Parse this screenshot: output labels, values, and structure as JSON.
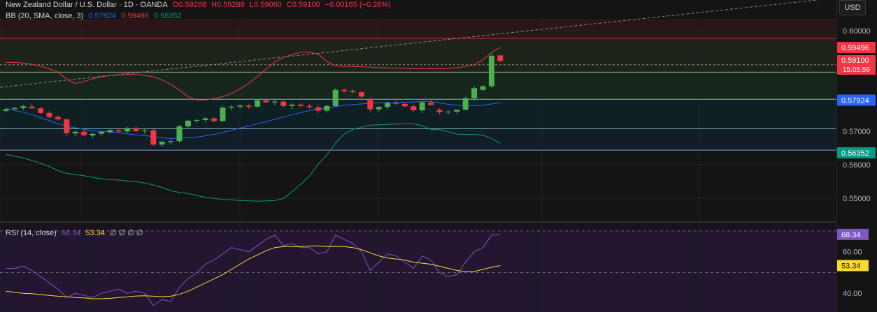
{
  "header": {
    "symbol": "New Zealand Dollar / U.S. Dollar · 1D · OANDA",
    "open": "O0.59268",
    "high": "H0.59268",
    "low": "L0.59060",
    "close": "C0.59100",
    "change": "−0.00165 (−0.28%)"
  },
  "bb_legend": {
    "label": "BB (20, SMA, close, 3)",
    "basis": "0.57924",
    "upper": "0.59496",
    "lower": "0.56352"
  },
  "rsi_legend": {
    "label": "RSI (14, close)",
    "rsi": "68.34",
    "ma": "53.34",
    "extra": "∅ ∅ ∅ ∅"
  },
  "currency_button": "USD",
  "colors": {
    "up": "#4caf50",
    "down": "#f23645",
    "bb_basis": "#2962ff",
    "bb_upper": "#f23645",
    "bb_lower": "#089981",
    "rsi": "#7e57c2",
    "rsi_ma": "#fdd835"
  },
  "chart_data": [
    {
      "type": "candlestick",
      "title": "New Zealand Dollar / U.S. Dollar · 1D · OANDA",
      "price_axis": {
        "ticks": [
          "0.60000",
          "0.57000",
          "0.56000",
          "0.55000"
        ],
        "tick_values": [
          0.6,
          0.57,
          0.56,
          0.55
        ],
        "labels": [
          {
            "text": "0.59496",
            "value": 0.59496,
            "color": "#f23645"
          },
          {
            "text": "0.59100",
            "value": 0.591,
            "color": "#f23645"
          },
          {
            "text": "15:05:59",
            "value": 0.5895,
            "color": "#f23645"
          },
          {
            "text": "0.57924",
            "value": 0.57924,
            "color": "#2962ff"
          },
          {
            "text": "0.56352",
            "value": 0.56352,
            "color": "#089981"
          }
        ],
        "range": [
          0.5433,
          0.6035
        ]
      },
      "horizontal_levels": [
        0.5977,
        0.5898,
        0.5876,
        0.5795,
        0.5707,
        0.5643
      ],
      "candles": [
        [
          0.576,
          0.5768,
          0.5756,
          0.5765
        ],
        [
          0.5766,
          0.5772,
          0.576,
          0.5769
        ],
        [
          0.5769,
          0.5778,
          0.5762,
          0.5774
        ],
        [
          0.5773,
          0.5783,
          0.5766,
          0.5768
        ],
        [
          0.5768,
          0.5772,
          0.575,
          0.5754
        ],
        [
          0.5754,
          0.576,
          0.5738,
          0.5742
        ],
        [
          0.5742,
          0.5748,
          0.5732,
          0.5735
        ],
        [
          0.5735,
          0.5738,
          0.5685,
          0.5694
        ],
        [
          0.5693,
          0.5702,
          0.5684,
          0.5698
        ],
        [
          0.5698,
          0.5705,
          0.5684,
          0.5688
        ],
        [
          0.5687,
          0.5695,
          0.568,
          0.5692
        ],
        [
          0.5692,
          0.5702,
          0.5686,
          0.5698
        ],
        [
          0.5697,
          0.5706,
          0.5692,
          0.5703
        ],
        [
          0.5703,
          0.5709,
          0.5694,
          0.5699
        ],
        [
          0.5699,
          0.5712,
          0.5695,
          0.5709
        ],
        [
          0.5709,
          0.5714,
          0.5696,
          0.57
        ],
        [
          0.57,
          0.5709,
          0.5692,
          0.5702
        ],
        [
          0.5702,
          0.5706,
          0.5655,
          0.566
        ],
        [
          0.566,
          0.5672,
          0.5652,
          0.5668
        ],
        [
          0.5667,
          0.5676,
          0.5659,
          0.567
        ],
        [
          0.567,
          0.5718,
          0.5665,
          0.5714
        ],
        [
          0.5714,
          0.5734,
          0.571,
          0.5731
        ],
        [
          0.5731,
          0.5738,
          0.5724,
          0.5733
        ],
        [
          0.5733,
          0.5742,
          0.5726,
          0.5738
        ],
        [
          0.5738,
          0.5741,
          0.5726,
          0.573
        ],
        [
          0.573,
          0.5774,
          0.5727,
          0.577
        ],
        [
          0.577,
          0.5778,
          0.5762,
          0.5773
        ],
        [
          0.5773,
          0.5779,
          0.5767,
          0.5776
        ],
        [
          0.5776,
          0.578,
          0.5767,
          0.5773
        ],
        [
          0.5773,
          0.5795,
          0.5771,
          0.5792
        ],
        [
          0.5792,
          0.5799,
          0.5784,
          0.5786
        ],
        [
          0.5786,
          0.5794,
          0.5777,
          0.5788
        ],
        [
          0.5788,
          0.5792,
          0.577,
          0.5775
        ],
        [
          0.5775,
          0.5783,
          0.5766,
          0.5779
        ],
        [
          0.5779,
          0.5784,
          0.5772,
          0.5775
        ],
        [
          0.5775,
          0.5781,
          0.5767,
          0.5772
        ],
        [
          0.5771,
          0.5779,
          0.5754,
          0.5761
        ],
        [
          0.5761,
          0.5778,
          0.5756,
          0.5775
        ],
        [
          0.5775,
          0.5827,
          0.5773,
          0.5823
        ],
        [
          0.5823,
          0.5828,
          0.5814,
          0.582
        ],
        [
          0.582,
          0.5826,
          0.5811,
          0.5816
        ],
        [
          0.5816,
          0.5821,
          0.5798,
          0.5803
        ],
        [
          0.5795,
          0.58,
          0.5755,
          0.5765
        ],
        [
          0.5765,
          0.5775,
          0.5758,
          0.5772
        ],
        [
          0.5772,
          0.5788,
          0.5764,
          0.5784
        ],
        [
          0.5783,
          0.5796,
          0.5775,
          0.5781
        ],
        [
          0.5781,
          0.5786,
          0.5771,
          0.5774
        ],
        [
          0.5774,
          0.5778,
          0.5757,
          0.5762
        ],
        [
          0.5762,
          0.5788,
          0.5752,
          0.5786
        ],
        [
          0.5785,
          0.5795,
          0.5778,
          0.5778
        ],
        [
          0.5763,
          0.5768,
          0.575,
          0.5757
        ],
        [
          0.5756,
          0.5762,
          0.5748,
          0.5758
        ],
        [
          0.5758,
          0.5762,
          0.575,
          0.5764
        ],
        [
          0.5764,
          0.5803,
          0.5762,
          0.5798
        ],
        [
          0.5798,
          0.5835,
          0.5791,
          0.5828
        ],
        [
          0.5823,
          0.5838,
          0.5818,
          0.5834
        ],
        [
          0.5834,
          0.5932,
          0.5828,
          0.5925
        ],
        [
          0.5926,
          0.5926,
          0.5906,
          0.591
        ]
      ],
      "bb_upper": [
        0.5905,
        0.5905,
        0.5903,
        0.5899,
        0.5894,
        0.5886,
        0.5876,
        0.5855,
        0.5842,
        0.5848,
        0.5856,
        0.5862,
        0.5866,
        0.5868,
        0.5869,
        0.5869,
        0.5867,
        0.5862,
        0.5853,
        0.584,
        0.5822,
        0.5803,
        0.5793,
        0.5793,
        0.5797,
        0.5803,
        0.5812,
        0.5826,
        0.5843,
        0.5863,
        0.5885,
        0.5906,
        0.592,
        0.5928,
        0.5936,
        0.5935,
        0.593,
        0.5908,
        0.5895,
        0.5893,
        0.5893,
        0.5892,
        0.5891,
        0.5889,
        0.5889,
        0.5888,
        0.5887,
        0.5886,
        0.5886,
        0.5886,
        0.5886,
        0.5887,
        0.5889,
        0.5893,
        0.5898,
        0.5912,
        0.5935,
        0.595
      ],
      "bb_basis": [
        0.5768,
        0.5762,
        0.5756,
        0.5749,
        0.574,
        0.5731,
        0.5722,
        0.5715,
        0.571,
        0.5705,
        0.5701,
        0.5699,
        0.5697,
        0.5695,
        0.5692,
        0.5689,
        0.5687,
        0.5683,
        0.568,
        0.5678,
        0.5679,
        0.568,
        0.5682,
        0.5686,
        0.569,
        0.5696,
        0.5702,
        0.5709,
        0.5715,
        0.5722,
        0.5728,
        0.5735,
        0.5742,
        0.5749,
        0.5755,
        0.5761,
        0.5766,
        0.5769,
        0.5773,
        0.5777,
        0.5779,
        0.5781,
        0.5783,
        0.5784,
        0.5785,
        0.5785,
        0.5786,
        0.5787,
        0.5789,
        0.5788,
        0.5784,
        0.578,
        0.5777,
        0.5776,
        0.5776,
        0.5777,
        0.5781,
        0.5785
      ],
      "bb_lower": [
        0.563,
        0.5625,
        0.562,
        0.5612,
        0.5604,
        0.5594,
        0.5582,
        0.5574,
        0.557,
        0.5567,
        0.5562,
        0.5558,
        0.5555,
        0.5554,
        0.5551,
        0.5549,
        0.5545,
        0.5539,
        0.5532,
        0.5522,
        0.5517,
        0.5514,
        0.5508,
        0.5502,
        0.5499,
        0.5496,
        0.5495,
        0.5493,
        0.5492,
        0.5491,
        0.5492,
        0.5493,
        0.5499,
        0.5519,
        0.5542,
        0.5566,
        0.5601,
        0.5629,
        0.5664,
        0.5691,
        0.5705,
        0.5712,
        0.5718,
        0.5719,
        0.572,
        0.5721,
        0.5722,
        0.5722,
        0.5716,
        0.5705,
        0.5704,
        0.5698,
        0.5691,
        0.569,
        0.569,
        0.5688,
        0.5678,
        0.5663
      ]
    },
    {
      "type": "line",
      "title": "RSI (14, close)",
      "y_axis": {
        "ticks": [
          "60.00",
          "40.00"
        ],
        "tick_values": [
          60,
          40
        ],
        "levels": [
          70,
          50,
          30
        ],
        "range": [
          31,
          73
        ],
        "labels": [
          {
            "text": "68.34",
            "value": 68.34,
            "color": "#7e57c2"
          },
          {
            "text": "53.34",
            "value": 53.34,
            "color": "#fdd835"
          }
        ]
      },
      "series": [
        {
          "name": "RSI",
          "values": [
            52,
            52,
            53,
            51,
            48,
            45,
            42,
            38,
            40,
            39,
            38,
            40,
            41,
            42,
            40,
            41,
            40,
            34,
            37,
            36,
            43,
            47,
            50,
            54,
            56,
            59,
            62,
            61,
            60,
            63,
            66,
            68,
            63,
            64,
            62,
            62,
            59,
            60,
            68,
            66,
            64,
            60,
            51,
            55,
            59,
            58,
            55,
            52,
            58,
            56,
            50,
            48,
            49,
            55,
            60,
            62,
            68,
            68.34
          ]
        },
        {
          "name": "RSI-based MA",
          "values": [
            41,
            40.5,
            40,
            39.8,
            39.4,
            39,
            38.6,
            38.3,
            38,
            37.8,
            37.4,
            37.4,
            37.6,
            38,
            38.3,
            38.7,
            38.8,
            38.6,
            38.4,
            38.6,
            39.5,
            41,
            43,
            45,
            47,
            49,
            51.5,
            54,
            56.5,
            58.5,
            60.5,
            62,
            62.5,
            62.5,
            62.5,
            62.8,
            62.8,
            62.5,
            62.6,
            62.5,
            62,
            61,
            59.5,
            58,
            57,
            56.5,
            56,
            55,
            54.5,
            54,
            53,
            52,
            51,
            50.5,
            50.5,
            51.5,
            52.5,
            53.34
          ]
        }
      ]
    }
  ]
}
